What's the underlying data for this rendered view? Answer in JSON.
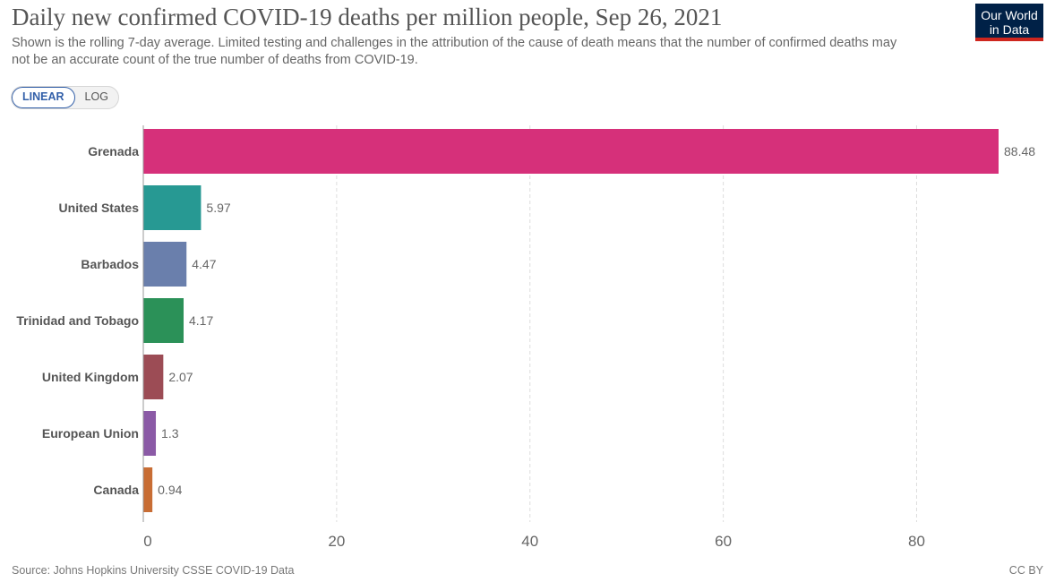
{
  "header": {
    "title": "Daily new confirmed COVID-19 deaths per million people, Sep 26, 2021",
    "subtitle": "Shown is the rolling 7-day average. Limited testing and challenges in the attribution of the cause of death means that the number of confirmed deaths may not be an accurate count of the true number of deaths from COVID-19."
  },
  "logo": {
    "line1": "Our World",
    "line2": "in Data"
  },
  "scale_toggle": {
    "options": [
      "LINEAR",
      "LOG"
    ],
    "selected": "LINEAR"
  },
  "footer": {
    "source": "Source: Johns Hopkins University CSSE COVID-19 Data",
    "license": "CC BY"
  },
  "chart_data": {
    "type": "bar",
    "orientation": "horizontal",
    "categories": [
      "Grenada",
      "United States",
      "Barbados",
      "Trinidad and Tobago",
      "United Kingdom",
      "European Union",
      "Canada"
    ],
    "values": [
      88.48,
      5.97,
      4.47,
      4.17,
      2.07,
      1.3,
      0.94
    ],
    "value_labels": [
      "88.48",
      "5.97",
      "4.47",
      "4.17",
      "2.07",
      "1.3",
      "0.94"
    ],
    "colors": [
      "#d6307a",
      "#279993",
      "#6a7fac",
      "#2b9158",
      "#9c4c55",
      "#8b5aa6",
      "#c86d34"
    ],
    "xlim": [
      0,
      88.48
    ],
    "xticks": [
      0,
      20,
      40,
      60,
      80
    ],
    "grid": "vertical-dashed",
    "legend": "none"
  }
}
